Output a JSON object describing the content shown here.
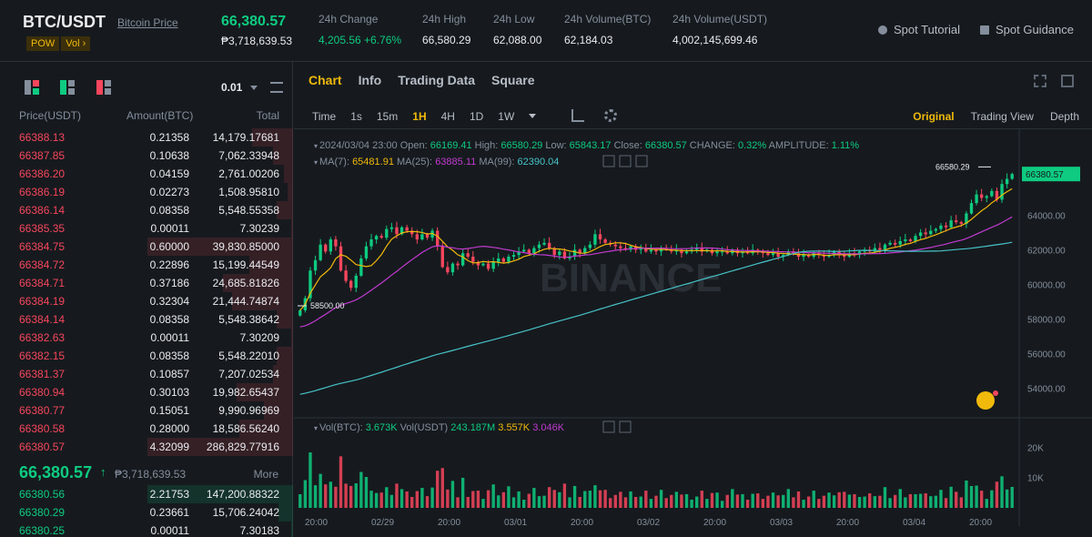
{
  "header": {
    "pair": "BTC/USDT",
    "pair_link": "Bitcoin Price",
    "tag1": "POW",
    "tag2": "Vol",
    "last_price": "66,380.57",
    "last_price_fiat": "₱3,718,639.53",
    "stats": [
      {
        "label": "24h Change",
        "value": "4,205.56 +6.76%",
        "color": "green"
      },
      {
        "label": "24h High",
        "value": "66,580.29"
      },
      {
        "label": "24h Low",
        "value": "62,088.00"
      },
      {
        "label": "24h Volume(BTC)",
        "value": "62,184.03"
      },
      {
        "label": "24h Volume(USDT)",
        "value": "4,002,145,699.46"
      }
    ],
    "link_tutorial": "Spot Tutorial",
    "link_guidance": "Spot Guidance"
  },
  "orderbook": {
    "tick": "0.01",
    "col_price": "Price(USDT)",
    "col_amount": "Amount(BTC)",
    "col_total": "Total",
    "asks": [
      {
        "price": "66388.13",
        "amount": "0.21358",
        "total": "14,179.17681",
        "depth": 0.28
      },
      {
        "price": "66387.85",
        "amount": "0.10638",
        "total": "7,062.33948",
        "depth": 0.14
      },
      {
        "price": "66386.20",
        "amount": "0.04159",
        "total": "2,761.00206",
        "depth": 0.06
      },
      {
        "price": "66386.19",
        "amount": "0.02273",
        "total": "1,508.95810",
        "depth": 0.04
      },
      {
        "price": "66386.14",
        "amount": "0.08358",
        "total": "5,548.55358",
        "depth": 0.11
      },
      {
        "price": "66385.35",
        "amount": "0.00011",
        "total": "7.30239",
        "depth": 0.005
      },
      {
        "price": "66384.75",
        "amount": "0.60000",
        "total": "39,830.85000",
        "depth": 1.0
      },
      {
        "price": "66384.72",
        "amount": "0.22896",
        "total": "15,199.44549",
        "depth": 0.3
      },
      {
        "price": "66384.71",
        "amount": "0.37186",
        "total": "24,685.81826",
        "depth": 0.48
      },
      {
        "price": "66384.19",
        "amount": "0.32304",
        "total": "21,444.74874",
        "depth": 0.42
      },
      {
        "price": "66384.14",
        "amount": "0.08358",
        "total": "5,548.38642",
        "depth": 0.11
      },
      {
        "price": "66382.63",
        "amount": "0.00011",
        "total": "7.30209",
        "depth": 0.005
      },
      {
        "price": "66382.15",
        "amount": "0.08358",
        "total": "5,548.22010",
        "depth": 0.11
      },
      {
        "price": "66381.37",
        "amount": "0.10857",
        "total": "7,207.02534",
        "depth": 0.14
      },
      {
        "price": "66380.94",
        "amount": "0.30103",
        "total": "19,982.65437",
        "depth": 0.39
      },
      {
        "price": "66380.77",
        "amount": "0.15051",
        "total": "9,990.96969",
        "depth": 0.2
      },
      {
        "price": "66380.58",
        "amount": "0.28000",
        "total": "18,586.56240",
        "depth": 0.37
      },
      {
        "price": "66380.57",
        "amount": "4.32099",
        "total": "286,829.77916",
        "depth": 1.0
      }
    ],
    "mid_price": "66,380.57",
    "mid_arrow": "↑",
    "mid_fiat": "₱3,718,639.53",
    "more": "More",
    "bids": [
      {
        "price": "66380.56",
        "amount": "2.21753",
        "total": "147,200.88322",
        "depth": 1.0
      },
      {
        "price": "66380.29",
        "amount": "0.23661",
        "total": "15,706.24042",
        "depth": 0.1
      },
      {
        "price": "66380.25",
        "amount": "0.00011",
        "total": "7.30183",
        "depth": 0.005
      }
    ]
  },
  "chart": {
    "tabs": [
      "Chart",
      "Info",
      "Trading Data",
      "Square"
    ],
    "timeframes": [
      "Time",
      "1s",
      "15m",
      "1H",
      "4H",
      "1D",
      "1W"
    ],
    "active_tf": "1H",
    "views": [
      "Original",
      "Trading View",
      "Depth"
    ],
    "ohlc": {
      "date": "2024/03/04 23:00",
      "open_label": "Open:",
      "open": "66169.41",
      "high_label": "High:",
      "high": "66580.29",
      "low_label": "Low:",
      "low": "65843.17",
      "close_label": "Close:",
      "close": "66380.57",
      "change_label": "CHANGE:",
      "change": "0.32%",
      "amp_label": "AMPLITUDE:",
      "amp": "1.11%"
    },
    "ma": {
      "ma7_label": "MA(7):",
      "ma7": "65481.91",
      "ma25_label": "MA(25):",
      "ma25": "63885.11",
      "ma99_label": "MA(99):",
      "ma99": "62390.04"
    },
    "vol": {
      "label": "Vol(BTC):",
      "btc": "3.673K",
      "usdt_label": "Vol(USDT)",
      "usdt": "243.187M",
      "v1": "3.557K",
      "v2": "3.046K"
    },
    "price_ticks": [
      "64000.00",
      "62000.00",
      "60000.00",
      "58000.00",
      "56000.00",
      "54000.00"
    ],
    "current_price": "66380.57",
    "high_marker": "66580.29",
    "low_marker": "58500.00",
    "vol_ticks": [
      "20K",
      "10K"
    ],
    "x_ticks": [
      "20:00",
      "02/29",
      "20:00",
      "03/01",
      "20:00",
      "03/02",
      "20:00",
      "03/03",
      "20:00",
      "03/04",
      "20:00"
    ],
    "watermark": "BINANCE",
    "colors": {
      "up": "#0ecb81",
      "down": "#f6465d",
      "ma7": "#f0b90b",
      "ma25": "#c13ad0",
      "ma99": "#46c3c8"
    }
  },
  "chart_data": {
    "type": "candlestick",
    "price_range": [
      52500,
      67600
    ],
    "vol_max": 24000,
    "closes": [
      58500,
      59200,
      60800,
      61400,
      62300,
      61900,
      62600,
      62200,
      60800,
      60200,
      59800,
      60500,
      61500,
      62200,
      62600,
      62800,
      62700,
      63200,
      63300,
      62900,
      63300,
      63100,
      62900,
      62600,
      62900,
      62700,
      63100,
      62200,
      61000,
      60700,
      61200,
      61100,
      61800,
      61600,
      61300,
      61100,
      61200,
      60900,
      61300,
      61500,
      61300,
      61600,
      61700,
      61900,
      62000,
      61800,
      62100,
      62300,
      62400,
      62100,
      61700,
      61900,
      61500,
      61600,
      62000,
      61800,
      62100,
      62300,
      62900,
      62600,
      62400,
      62300,
      62200,
      62100,
      62000,
      62200,
      62000,
      62100,
      61900,
      62000,
      61900,
      62100,
      62000,
      61900,
      62000,
      61800,
      61900,
      62000,
      62100,
      61900,
      62000,
      61800,
      61900,
      61900,
      61800,
      62000,
      61800,
      61900,
      61800,
      62000,
      61900,
      61800,
      61700,
      61800,
      61600,
      61700,
      61900,
      61800,
      61600,
      61700,
      61600,
      61800,
      61700,
      61600,
      61700,
      61900,
      61700,
      61600,
      61800,
      61700,
      61900,
      62000,
      61900,
      62100,
      62000,
      62300,
      62400,
      62300,
      62500,
      62600,
      62500,
      62800,
      63000,
      62900,
      63100,
      63200,
      63400,
      63300,
      63700,
      63600,
      63500,
      64100,
      64700,
      65200,
      65000,
      65100,
      65400,
      64900,
      65800,
      66100,
      66380
    ]
  }
}
